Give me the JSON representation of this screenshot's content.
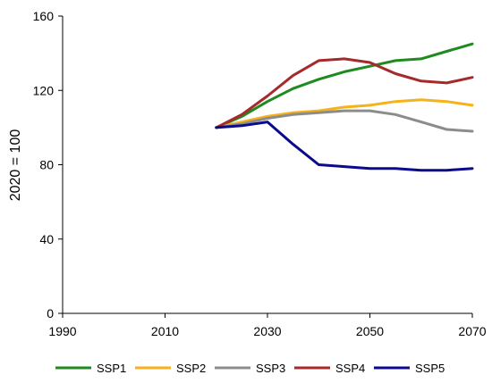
{
  "chart_data": {
    "type": "line",
    "title": "",
    "xlabel": "",
    "ylabel": "2020 = 100",
    "xlim": [
      1990,
      2070
    ],
    "ylim": [
      0,
      160
    ],
    "x_ticks": [
      1990,
      2010,
      2030,
      2050,
      2070
    ],
    "y_ticks": [
      0,
      40,
      80,
      120,
      160
    ],
    "x_tick_labels": [
      "1990",
      "2010",
      "2030",
      "2050",
      "2070"
    ],
    "y_tick_labels": [
      "0",
      "40",
      "80",
      "120",
      "160"
    ],
    "grid": false,
    "legend_position": "bottom",
    "x": [
      2020,
      2025,
      2030,
      2035,
      2040,
      2045,
      2050,
      2055,
      2060,
      2065,
      2070
    ],
    "series": [
      {
        "name": "SSP1",
        "color": "#1f8a1f",
        "values": [
          100,
          106,
          114,
          121,
          126,
          130,
          133,
          136,
          137,
          141,
          145
        ]
      },
      {
        "name": "SSP2",
        "color": "#f5b21a",
        "values": [
          100,
          103,
          106,
          108,
          109,
          111,
          112,
          114,
          115,
          114,
          112
        ]
      },
      {
        "name": "SSP3",
        "color": "#8c8c8c",
        "values": [
          100,
          102,
          105,
          107,
          108,
          109,
          109,
          107,
          103,
          99,
          98
        ]
      },
      {
        "name": "SSP4",
        "color": "#a52a2a",
        "values": [
          100,
          107,
          117,
          128,
          136,
          137,
          135,
          129,
          125,
          124,
          127
        ]
      },
      {
        "name": "SSP5",
        "color": "#0a0a8c",
        "values": [
          100,
          101,
          103,
          91,
          80,
          79,
          78,
          78,
          77,
          77,
          78
        ]
      }
    ]
  }
}
